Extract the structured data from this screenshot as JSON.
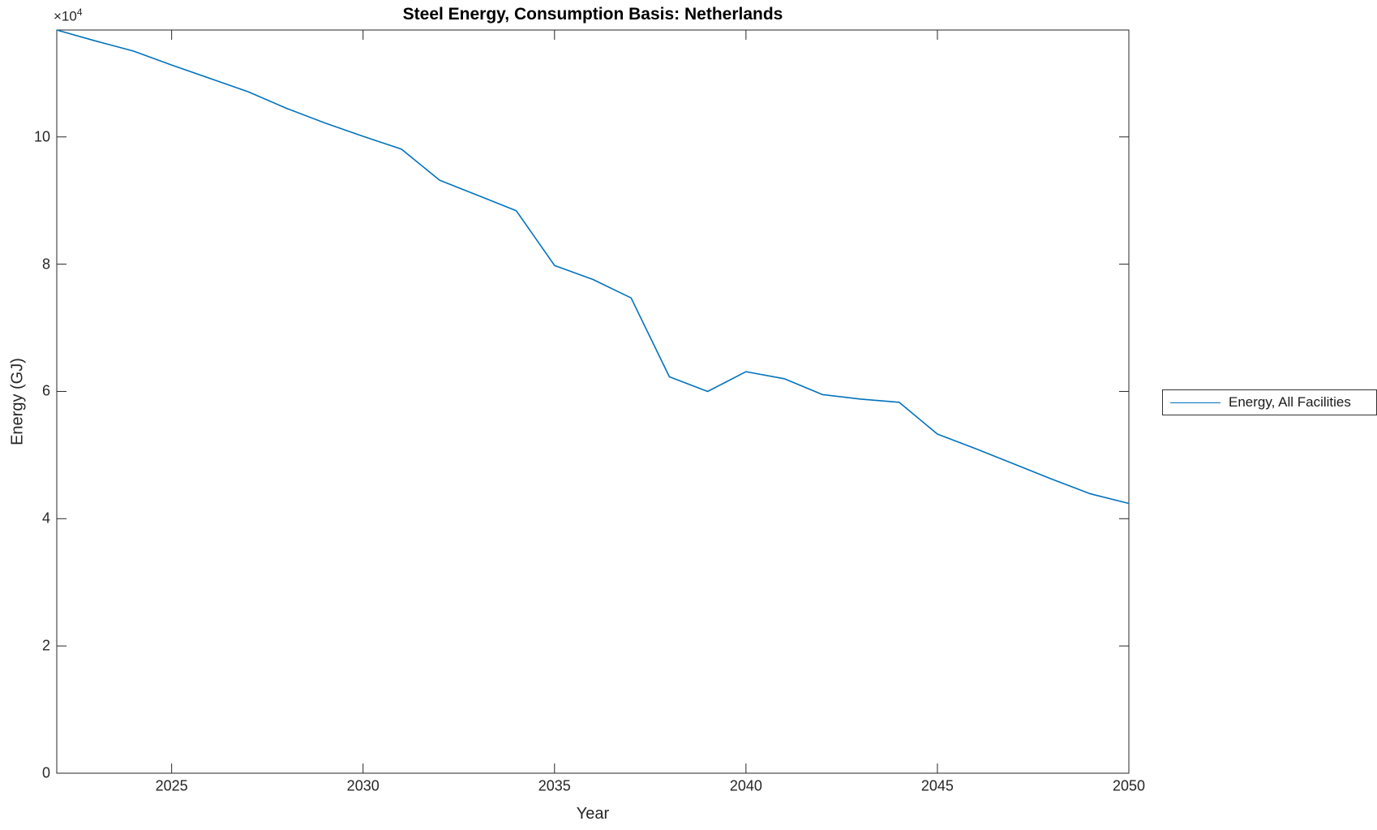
{
  "figure": {
    "title": "Steel Energy, Consumption Basis: Netherlands",
    "xlabel": "Year",
    "ylabel": "Energy (GJ)",
    "y_axis_multiplier_base": "×10",
    "y_axis_multiplier_exponent": "4"
  },
  "legend": {
    "entries": [
      {
        "label": "Energy, All Facilities",
        "color": "#0072BD"
      }
    ]
  },
  "chart_data": {
    "type": "line",
    "title": "Steel Energy, Consumption Basis: Netherlands",
    "xlabel": "Year",
    "ylabel": "Energy (GJ)",
    "y_axis_multiplier": "×10^4",
    "grid": false,
    "legend_position": "right-outside",
    "xlim": [
      2022,
      2050
    ],
    "ylim": [
      0,
      116800
    ],
    "xticks": [
      2025,
      2030,
      2035,
      2040,
      2045,
      2050
    ],
    "yticks": [
      0,
      20000,
      40000,
      60000,
      80000,
      100000
    ],
    "ytick_labels": [
      "0",
      "2",
      "4",
      "6",
      "8",
      "10"
    ],
    "x": [
      2022,
      2023,
      2024,
      2025,
      2026,
      2027,
      2028,
      2029,
      2030,
      2031,
      2032,
      2033,
      2034,
      2035,
      2036,
      2037,
      2038,
      2039,
      2040,
      2041,
      2042,
      2043,
      2044,
      2045,
      2046,
      2047,
      2048,
      2049,
      2050
    ],
    "series": [
      {
        "name": "Energy, All Facilities",
        "color": "#0072BD",
        "values": [
          116800,
          115100,
          113500,
          111300,
          109200,
          107100,
          104500,
          102200,
          100100,
          98100,
          93200,
          90800,
          88400,
          79800,
          77600,
          74700,
          62300,
          60000,
          63100,
          62000,
          59500,
          58800,
          58300,
          53300,
          51000,
          48600,
          46200,
          43900,
          42400
        ]
      }
    ]
  },
  "colors": {
    "line": "#0072BD",
    "axis": "#262626",
    "text": "#262626",
    "background": "#ffffff"
  }
}
